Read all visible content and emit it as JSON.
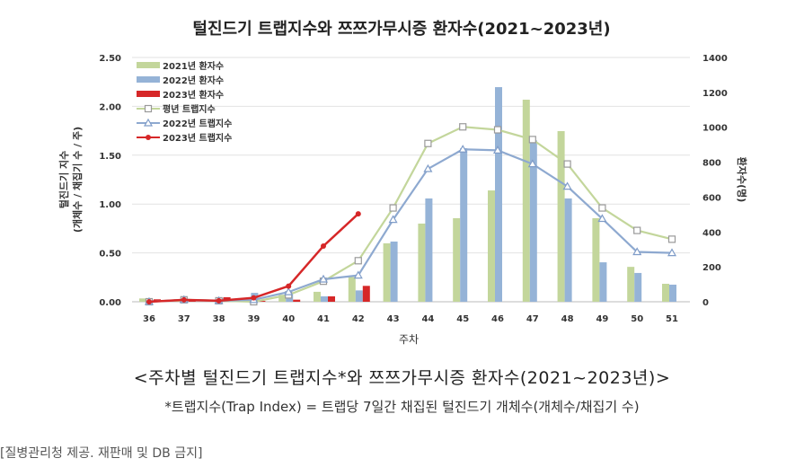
{
  "chart_data": {
    "type": "bar",
    "title": "털진드기 트랩지수와 쯔쯔가무시증 환자수(2021~2023년)",
    "xlabel": "주차",
    "ylabel_left": [
      "털진드기 지수",
      "(개체수 / 채집기 수 / 주)"
    ],
    "ylabel_right": "환자수(명)",
    "ylim_left": [
      0,
      2.5
    ],
    "ylim_right": [
      0,
      1400
    ],
    "yticks_left": [
      "0.00",
      "0.50",
      "1.00",
      "1.50",
      "2.00",
      "2.50"
    ],
    "yticks_right": [
      "0",
      "200",
      "400",
      "600",
      "800",
      "1000",
      "1200",
      "1400"
    ],
    "grid": true,
    "legend_placement": "top-left",
    "categories": [
      "36",
      "37",
      "38",
      "39",
      "40",
      "41",
      "42",
      "43",
      "44",
      "45",
      "46",
      "47",
      "48",
      "49",
      "50",
      "51"
    ],
    "bar_series": [
      {
        "name": "2021년 환자수",
        "color": "#c3d69b",
        "axis": "right",
        "values": [
          19,
          15,
          10,
          10,
          40,
          57,
          142,
          335,
          448,
          479,
          638,
          1158,
          978,
          479,
          200,
          103
        ]
      },
      {
        "name": "2022년 환자수",
        "color": "#95b3d7",
        "axis": "right",
        "values": [
          10,
          14,
          22,
          51,
          40,
          31,
          65,
          345,
          592,
          880,
          1230,
          925,
          592,
          226,
          165,
          98
        ]
      },
      {
        "name": "2023년 환자수",
        "color": "#d62728",
        "axis": "right",
        "values": [
          14,
          10,
          26,
          5,
          12,
          31,
          91,
          null,
          null,
          null,
          null,
          null,
          null,
          null,
          null,
          null
        ]
      }
    ],
    "line_series": [
      {
        "name": "평년 트랩지수",
        "color": "#c3d69b",
        "marker": "square",
        "axis": "left",
        "values": [
          0.0,
          0.02,
          0.01,
          0.0,
          0.07,
          0.21,
          0.42,
          0.96,
          1.62,
          1.79,
          1.76,
          1.66,
          1.41,
          0.96,
          0.73,
          0.64
        ]
      },
      {
        "name": "2022년 트랩지수",
        "color": "#8ea9d0",
        "marker": "triangle",
        "axis": "left",
        "values": [
          0.0,
          0.02,
          0.01,
          0.02,
          0.1,
          0.23,
          0.27,
          0.84,
          1.36,
          1.56,
          1.55,
          1.41,
          1.18,
          0.85,
          0.51,
          0.5
        ]
      },
      {
        "name": "2023년 트랩지수",
        "color": "#d62728",
        "marker": "diamond",
        "axis": "left",
        "values": [
          0.0,
          0.02,
          0.01,
          0.04,
          0.16,
          0.57,
          0.9,
          null,
          null,
          null,
          null,
          null,
          null,
          null,
          null,
          null
        ]
      }
    ]
  },
  "caption": "<주차별 털진드기 트랩지수*와 쯔쯔가무시증 환자수(2021~2023년)>",
  "footnote": "*트랩지수(Trap Index) = 트랩당 7일간 채집된 털진드기 개체수(개체수/채집기 수)",
  "source": "[질병관리청 제공. 재판매 및 DB 금지]"
}
